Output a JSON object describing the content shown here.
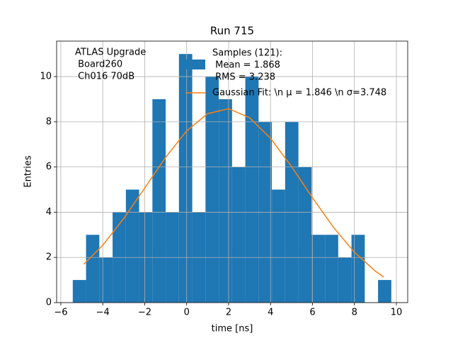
{
  "chart_data": {
    "type": "histogram",
    "title": "Run 715",
    "x_label": "time [ns]",
    "y_label": "Entries",
    "annotation": [
      "ATLAS Upgrade",
      " Board260",
      " Ch016 70dB"
    ],
    "bins": [
      -5.43,
      -4.797,
      -4.164,
      -3.531,
      -2.898,
      -2.266,
      -1.633,
      -1.0,
      -0.367,
      0.266,
      0.899,
      1.532,
      2.165,
      2.797,
      3.43,
      4.063,
      4.696,
      5.329,
      5.962,
      6.595,
      7.227,
      7.86,
      8.493,
      9.126,
      9.759
    ],
    "series": [
      {
        "name": [
          "Samples (121):",
          " Mean = 1.868",
          " RMS = 3.238"
        ],
        "color": "#1f77b4",
        "values": [
          1,
          3,
          2,
          4,
          5,
          4,
          9,
          4,
          11,
          4,
          10,
          9,
          6,
          10,
          8,
          5,
          8,
          6,
          3,
          3,
          2,
          3,
          0,
          1
        ]
      },
      {
        "name": "Gaussian Fit: \\n μ = 1.846 \\n σ=3.748",
        "color": "#ff7f0e",
        "x": [
          -4.9,
          -4,
          -3,
          -2,
          -1,
          0,
          1,
          2,
          3,
          4,
          5,
          6,
          7,
          8,
          9,
          9.4
        ],
        "values": [
          1.7,
          2.54,
          3.72,
          5.07,
          6.43,
          7.6,
          8.36,
          8.58,
          8.18,
          7.27,
          6.02,
          4.64,
          3.33,
          2.23,
          1.39,
          1.13
        ]
      }
    ],
    "xlim": [
      -6.2,
      10.54
    ],
    "xticks": [
      {
        "value": -6,
        "label": "−6"
      },
      {
        "value": -4,
        "label": "−4"
      },
      {
        "value": -2,
        "label": "−2"
      },
      0,
      2,
      4,
      6,
      8,
      10
    ],
    "ylim": [
      0,
      11.57
    ],
    "yticks": [
      0,
      2,
      4,
      6,
      8,
      10
    ],
    "grid": true
  }
}
